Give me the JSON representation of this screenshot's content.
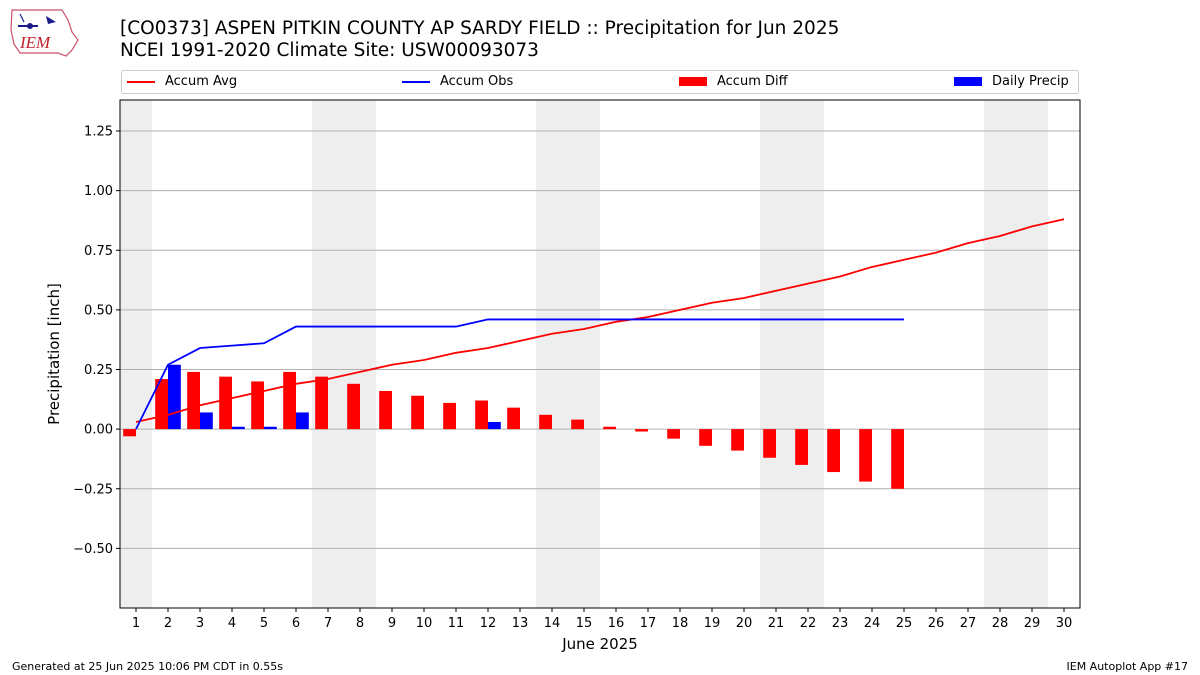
{
  "header": {
    "title_line1": "[CO0373] ASPEN PITKIN COUNTY AP SARDY FIELD :: Precipitation for Jun 2025",
    "title_line2": "NCEI 1991-2020 Climate Site: USW00093073",
    "logo_text": "IEM"
  },
  "footer": {
    "left": "Generated at 25 Jun 2025 10:06 PM CDT in 0.55s",
    "right": "IEM Autoplot App #17"
  },
  "chart_data": {
    "type": "bar",
    "xlabel": "June 2025",
    "ylabel": "Precipitation [inch]",
    "ylim": [
      -0.75,
      1.38
    ],
    "xlim": [
      0.5,
      30.5
    ],
    "yticks": [
      -0.5,
      -0.25,
      0.0,
      0.25,
      0.5,
      0.75,
      1.0,
      1.25
    ],
    "ytick_labels": [
      "−0.50",
      "−0.25",
      "0.00",
      "0.25",
      "0.50",
      "0.75",
      "1.00",
      "1.25"
    ],
    "days": [
      1,
      2,
      3,
      4,
      5,
      6,
      7,
      8,
      9,
      10,
      11,
      12,
      13,
      14,
      15,
      16,
      17,
      18,
      19,
      20,
      21,
      22,
      23,
      24,
      25,
      26,
      27,
      28,
      29,
      30
    ],
    "day_labels": [
      "1",
      "2",
      "3",
      "4",
      "5",
      "6",
      "7",
      "8",
      "9",
      "10",
      "11",
      "12",
      "13",
      "14",
      "15",
      "16",
      "17",
      "18",
      "19",
      "20",
      "21",
      "22",
      "23",
      "24",
      "25",
      "26",
      "27",
      "28",
      "29",
      "30"
    ],
    "weekend_days": [
      1,
      7,
      8,
      14,
      15,
      21,
      22,
      28,
      29
    ],
    "grid": "horizontal",
    "legend_placement": "top",
    "series": [
      {
        "name": "Accum Avg",
        "kind": "line",
        "color": "#ff0000",
        "values": [
          0.03,
          0.06,
          0.1,
          0.13,
          0.16,
          0.19,
          0.21,
          0.24,
          0.27,
          0.29,
          0.32,
          0.34,
          0.37,
          0.4,
          0.42,
          0.45,
          0.47,
          0.5,
          0.53,
          0.55,
          0.58,
          0.61,
          0.64,
          0.68,
          0.71,
          0.74,
          0.78,
          0.81,
          0.85,
          0.88
        ]
      },
      {
        "name": "Accum Obs",
        "kind": "line",
        "color": "#0000ff",
        "values": [
          0.0,
          0.27,
          0.34,
          0.35,
          0.36,
          0.43,
          0.43,
          0.43,
          0.43,
          0.43,
          0.43,
          0.46,
          0.46,
          0.46,
          0.46,
          0.46,
          0.46,
          0.46,
          0.46,
          0.46,
          0.46,
          0.46,
          0.46,
          0.46,
          0.46
        ]
      },
      {
        "name": "Accum Diff",
        "kind": "bar",
        "color": "#ff0000",
        "values": [
          -0.03,
          0.21,
          0.24,
          0.22,
          0.2,
          0.24,
          0.22,
          0.19,
          0.16,
          0.14,
          0.11,
          0.12,
          0.09,
          0.06,
          0.04,
          0.01,
          -0.01,
          -0.04,
          -0.07,
          -0.09,
          -0.12,
          -0.15,
          -0.18,
          -0.22,
          -0.25
        ]
      },
      {
        "name": "Daily Precip",
        "kind": "bar",
        "color": "#0000ff",
        "values": [
          0.0,
          0.27,
          0.07,
          0.01,
          0.01,
          0.07,
          0,
          0,
          0,
          0,
          0,
          0.03,
          0,
          0,
          0,
          0,
          0,
          0,
          0,
          0,
          0,
          0,
          0,
          0,
          0
        ]
      }
    ]
  }
}
